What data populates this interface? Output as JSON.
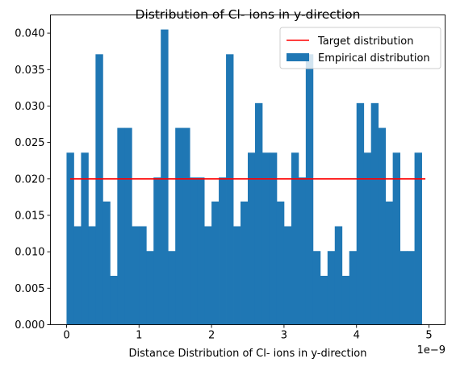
{
  "chart_data": {
    "type": "bar",
    "title": "Distribution of Cl- ions in y-direction",
    "xlabel": "Distance Distribution of Cl- ions in y-direction",
    "ylabel": "",
    "x_offset_label": "1e−9",
    "xlim": [
      -0.2222,
      5.2222
    ],
    "ylim": [
      0,
      0.0425
    ],
    "x_ticks": [
      0,
      1,
      2,
      3,
      4,
      5
    ],
    "x_tick_labels": [
      "0",
      "1",
      "2",
      "3",
      "4",
      "5"
    ],
    "y_ticks": [
      0.0,
      0.005,
      0.01,
      0.015,
      0.02,
      0.025,
      0.03,
      0.035,
      0.04
    ],
    "y_tick_labels": [
      "0.000",
      "0.005",
      "0.010",
      "0.015",
      "0.020",
      "0.025",
      "0.030",
      "0.035",
      "0.040"
    ],
    "bin_start": 0.0,
    "bin_width": 0.1,
    "values": [
      0.0236,
      0.0135,
      0.0236,
      0.0135,
      0.0371,
      0.0169,
      0.0067,
      0.027,
      0.027,
      0.0135,
      0.0135,
      0.0101,
      0.0202,
      0.0405,
      0.0101,
      0.027,
      0.027,
      0.0202,
      0.0202,
      0.0135,
      0.0169,
      0.0202,
      0.0371,
      0.0135,
      0.0169,
      0.0236,
      0.0304,
      0.0236,
      0.0236,
      0.0169,
      0.0135,
      0.0236,
      0.0202,
      0.0371,
      0.0101,
      0.0067,
      0.0101,
      0.0135,
      0.0067,
      0.0101,
      0.0304,
      0.0236,
      0.0304,
      0.027,
      0.0169,
      0.0236,
      0.0101,
      0.0101,
      0.0236
    ],
    "series": [
      {
        "name": "Target distribution",
        "type": "line",
        "x": [
          0.05,
          4.95
        ],
        "y": [
          0.02,
          0.02
        ],
        "color": "#ff0000"
      },
      {
        "name": "Empirical distribution",
        "type": "bar",
        "color": "#1f77b4"
      }
    ],
    "legend": {
      "position": "top-right",
      "entries": [
        "Target distribution",
        "Empirical distribution"
      ]
    },
    "grid": false
  }
}
